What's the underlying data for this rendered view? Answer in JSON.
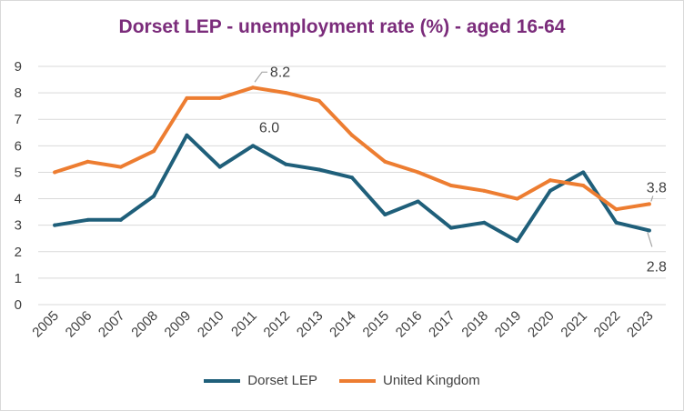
{
  "chart_data": {
    "type": "line",
    "title": "Dorset LEP - unemployment rate (%) - aged 16-64",
    "categories": [
      "2005",
      "2006",
      "2007",
      "2008",
      "2009",
      "2010",
      "2011",
      "2012",
      "2013",
      "2014",
      "2015",
      "2016",
      "2017",
      "2018",
      "2019",
      "2020",
      "2021",
      "2022",
      "2023"
    ],
    "series": [
      {
        "name": "Dorset LEP",
        "color": "#1f5f7a",
        "values": [
          3.0,
          3.2,
          3.2,
          4.1,
          6.4,
          5.2,
          6.0,
          5.3,
          5.1,
          4.8,
          3.4,
          3.9,
          2.9,
          3.1,
          2.4,
          4.3,
          5.0,
          3.1,
          2.8
        ]
      },
      {
        "name": "United Kingdom",
        "color": "#ed7d31",
        "values": [
          5.0,
          5.4,
          5.2,
          5.8,
          7.8,
          7.8,
          8.2,
          8.0,
          7.7,
          6.4,
          5.4,
          5.0,
          4.5,
          4.3,
          4.0,
          4.7,
          4.5,
          3.6,
          3.8
        ]
      }
    ],
    "ylim": [
      0,
      9
    ],
    "yticks": [
      0,
      1,
      2,
      3,
      4,
      5,
      6,
      7,
      8,
      9
    ],
    "grid": true,
    "legend_position": "bottom",
    "annotations": [
      {
        "series": 1,
        "index": 6,
        "text": "8.2"
      },
      {
        "series": 0,
        "index": 6,
        "text": "6.0"
      },
      {
        "series": 1,
        "index": 18,
        "text": "3.8"
      },
      {
        "series": 0,
        "index": 18,
        "text": "2.8"
      }
    ]
  }
}
